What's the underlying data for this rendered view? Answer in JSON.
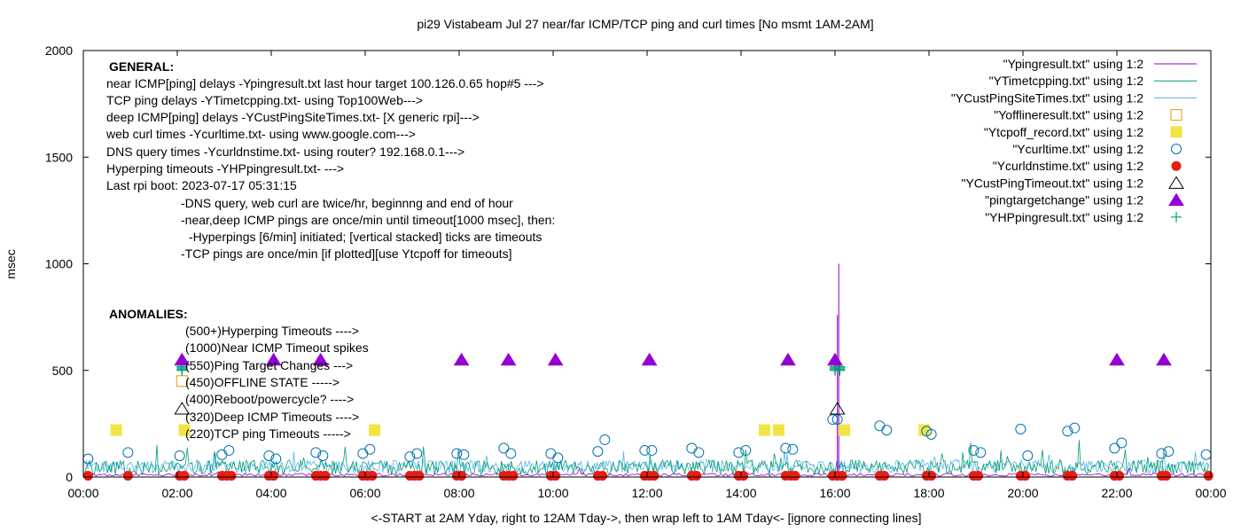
{
  "chart_data": {
    "type": "scatter",
    "title": "pi29 Vistabeam Jul 27  near/far ICMP/TCP ping and curl times [No msmt 1AM-2AM]",
    "xlabel": "<-START at 2AM Yday, right to 12AM Tday->, then wrap left to 1AM Tday<- [ignore connecting lines]",
    "ylabel": "msec",
    "xlim": [
      0,
      24
    ],
    "ylim": [
      0,
      2000
    ],
    "x_ticks": [
      "00:00",
      "02:00",
      "04:00",
      "06:00",
      "08:00",
      "10:00",
      "12:00",
      "14:00",
      "16:00",
      "18:00",
      "20:00",
      "22:00",
      "00:00"
    ],
    "y_ticks": [
      "0",
      "500",
      "1000",
      "1500",
      "2000"
    ],
    "legend_position": "top-right",
    "series": [
      {
        "name": "\"Ypingresult.txt\" using 1:2",
        "color": "#9400d3",
        "style": "line"
      },
      {
        "name": "\"YTimetcpping.txt\" using 1:2",
        "color": "#009e73",
        "style": "line"
      },
      {
        "name": "\"YCustPingSiteTimes.txt\" using 1:2",
        "color": "#56b4e9",
        "style": "line"
      },
      {
        "name": "\"Yofflineresult.txt\" using 1:2",
        "color": "#e69f00",
        "style": "open-square"
      },
      {
        "name": "\"Ytcpoff_record.txt\" using 1:2",
        "color": "#f0e442",
        "style": "filled-square"
      },
      {
        "name": "\"Ycurltime.txt\" using 1:2",
        "color": "#0072b2",
        "style": "open-circle"
      },
      {
        "name": "\"Ycurldnstime.txt\" using 1:2",
        "color": "#e51e10",
        "style": "filled-circle"
      },
      {
        "name": "\"YCustPingTimeout.txt\" using 1:2",
        "color": "#000000",
        "style": "open-triangle"
      },
      {
        "name": "\"pingtargetchange\" using 1:2",
        "color": "#9400d3",
        "style": "filled-triangle"
      },
      {
        "name": "\"YHPpingresult.txt\" using 1:2",
        "color": "#009e73",
        "style": "plus"
      }
    ],
    "ping_spikes": [
      {
        "x": 16.08,
        "y": 1000
      },
      {
        "x": 16.05,
        "y": 760
      }
    ],
    "ping_target_changes": {
      "x": [
        2.1,
        4.05,
        5.05,
        8.05,
        9.05,
        10.05,
        12.05,
        15.0,
        16.0,
        22.0,
        23.0
      ],
      "y": 550
    },
    "tcp_timeouts": {
      "x": [
        0.7,
        2.15,
        6.2,
        14.5,
        14.8,
        16.2,
        17.9
      ],
      "y": 220
    },
    "offline_state": {
      "x": [
        2.1
      ],
      "y": 450
    },
    "custping_timeouts": {
      "x": [
        2.1,
        16.05
      ],
      "y": 320
    },
    "hpping_timeouts": {
      "x": [
        2.1,
        16.0,
        16.1
      ],
      "y": 500
    },
    "curl_times": {
      "x": [
        0.1,
        0.95,
        2.05,
        2.95,
        3.1,
        3.95,
        4.1,
        4.95,
        5.1,
        5.95,
        6.1,
        6.95,
        7.1,
        7.95,
        8.1,
        8.95,
        9.1,
        9.95,
        10.1,
        10.95,
        11.1,
        11.95,
        12.1,
        12.95,
        13.1,
        13.95,
        14.1,
        14.95,
        15.1,
        15.95,
        16.05,
        16.95,
        17.1,
        17.95,
        18.05,
        18.95,
        19.1,
        19.95,
        20.1,
        20.95,
        21.1,
        21.95,
        22.1,
        22.95,
        23.1,
        23.9
      ],
      "y": [
        85,
        115,
        100,
        105,
        125,
        100,
        85,
        115,
        100,
        110,
        130,
        95,
        110,
        110,
        105,
        135,
        110,
        110,
        90,
        120,
        175,
        125,
        125,
        135,
        115,
        115,
        125,
        135,
        130,
        270,
        270,
        240,
        220,
        215,
        200,
        125,
        115,
        225,
        100,
        215,
        230,
        135,
        160,
        110,
        120,
        105
      ]
    },
    "dns_x": [
      0.1,
      0.95,
      2.05,
      2.15,
      2.95,
      3.05,
      3.15,
      3.95,
      4.05,
      4.95,
      5.05,
      5.15,
      5.95,
      6.05,
      6.15,
      6.95,
      7.05,
      7.15,
      7.95,
      8.05,
      8.95,
      9.05,
      9.15,
      9.95,
      10.05,
      10.95,
      11.05,
      11.95,
      12.05,
      12.15,
      12.95,
      13.05,
      13.95,
      14.05,
      14.95,
      15.05,
      15.15,
      15.95,
      16.05,
      16.15,
      16.95,
      17.05,
      17.95,
      18.05,
      18.95,
      19.05,
      19.95,
      20.05,
      20.95,
      21.05,
      21.95,
      22.05,
      22.95,
      23.05,
      23.95
    ],
    "annotations": {
      "general_header": "GENERAL:",
      "general_lines": [
        "near ICMP[ping] delays -Ypingresult.txt last hour target 100.126.0.65 hop#5 --->",
        "TCP ping delays -YTimetcpping.txt- using Top100Web--->",
        "deep ICMP[ping] delays -YCustPingSiteTimes.txt- [X generic rpi]--->",
        "web curl times -Ycurltime.txt- using www.google.com--->",
        "DNS query times -Ycurldnstime.txt- using router? 192.168.0.1--->",
        "Hyperping timeouts -YHPpingresult.txt- --->",
        "Last rpi boot: 2023-07-17 05:31:15"
      ],
      "notes": [
        "-DNS query, web curl are twice/hr, beginnng and end of hour",
        "-near,deep ICMP pings are once/min until timeout[1000 msec], then:",
        "-Hyperpings [6/min] initiated; [vertical stacked] ticks are timeouts",
        "-TCP pings are once/min [if plotted][use Ytcpoff for timeouts]"
      ],
      "anomalies_header": "ANOMALIES:",
      "anomalies": [
        "(500+)Hyperping Timeouts ---->",
        "(1000)Near ICMP Timeout spikes",
        "(550)Ping Target Changes --->",
        "(450)OFFLINE STATE ----->",
        "(400)Reboot/powercycle? ---->",
        "(320)Deep ICMP Timeouts ---->",
        "(220)TCP ping Timeouts ----->"
      ]
    }
  }
}
